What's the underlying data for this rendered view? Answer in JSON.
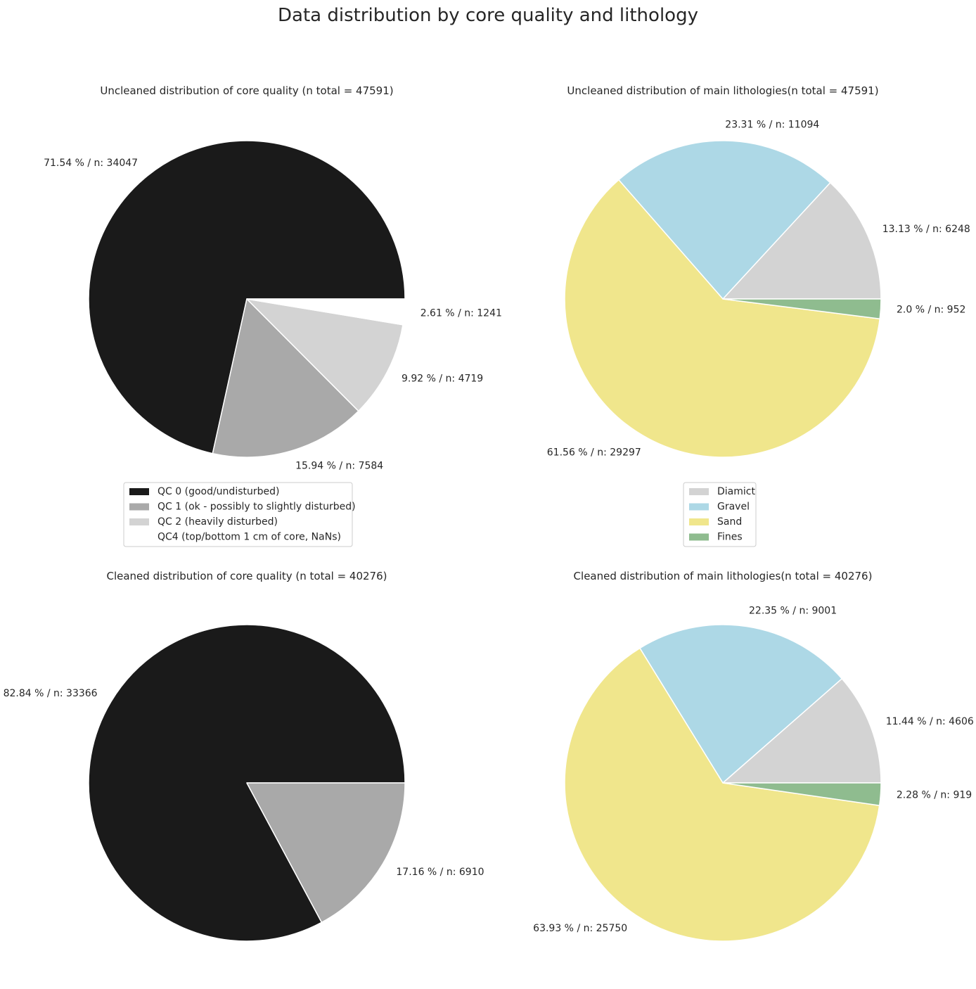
{
  "figure": {
    "suptitle": "Data distribution by core quality and lithology",
    "background": "#ffffff",
    "wedge_edge_color": "#ffffff"
  },
  "chart_data": [
    {
      "type": "pie",
      "title": "Uncleaned distribution of core quality (n total = 47591)",
      "start_angle_deg": 0,
      "direction": "counterclockwise",
      "slices": [
        {
          "name": "QC 0 (good/undisturbed)",
          "value": 71.54,
          "n": 34047,
          "label": "71.54 % / n: 34047",
          "color": "#1a1a1a"
        },
        {
          "name": "QC 1 (ok - possibly to slightly disturbed)",
          "value": 15.94,
          "n": 7584,
          "label": "15.94 % / n: 7584",
          "color": "#a9a9a9"
        },
        {
          "name": "QC 2 (heavily disturbed)",
          "value": 9.92,
          "n": 4719,
          "label": "9.92 % / n: 4719",
          "color": "#d3d3d3"
        },
        {
          "name": "QC4 (top/bottom 1 cm of core, NaNs)",
          "value": 2.61,
          "n": 1241,
          "label": "2.61 % / n: 1241",
          "color": "#ffffff"
        }
      ],
      "legend": {
        "placement": "below",
        "entries": [
          {
            "label": "QC 0 (good/undisturbed)",
            "color": "#1a1a1a"
          },
          {
            "label": "QC 1 (ok - possibly to slightly disturbed)",
            "color": "#a9a9a9"
          },
          {
            "label": "QC 2 (heavily disturbed)",
            "color": "#d3d3d3"
          },
          {
            "label": "QC4 (top/bottom 1 cm of core, NaNs)",
            "color": "#ffffff"
          }
        ]
      }
    },
    {
      "type": "pie",
      "title": "Uncleaned distribution of main lithologies(n total = 47591)",
      "start_angle_deg": 0,
      "direction": "counterclockwise",
      "slices": [
        {
          "name": "Diamict",
          "value": 13.13,
          "n": 6248,
          "label": "13.13 % / n: 6248",
          "color": "#d3d3d3"
        },
        {
          "name": "Gravel",
          "value": 23.31,
          "n": 11094,
          "label": "23.31 % / n: 11094",
          "color": "#add8e6"
        },
        {
          "name": "Sand",
          "value": 61.56,
          "n": 29297,
          "label": "61.56 % / n: 29297",
          "color": "#f0e68c"
        },
        {
          "name": "Fines",
          "value": 2.0,
          "n": 952,
          "label": "2.0 % / n: 952",
          "color": "#8fbc8f"
        }
      ],
      "legend": {
        "placement": "below",
        "entries": [
          {
            "label": "Diamict",
            "color": "#d3d3d3"
          },
          {
            "label": "Gravel",
            "color": "#add8e6"
          },
          {
            "label": "Sand",
            "color": "#f0e68c"
          },
          {
            "label": "Fines",
            "color": "#8fbc8f"
          }
        ]
      }
    },
    {
      "type": "pie",
      "title": "Cleaned distribution of core quality (n total = 40276)",
      "start_angle_deg": 0,
      "direction": "counterclockwise",
      "slices": [
        {
          "name": "QC 0",
          "value": 82.84,
          "n": 33366,
          "label": "82.84 % / n: 33366",
          "color": "#1a1a1a"
        },
        {
          "name": "QC 1",
          "value": 17.16,
          "n": 6910,
          "label": "17.16 % / n: 6910",
          "color": "#a9a9a9"
        }
      ]
    },
    {
      "type": "pie",
      "title": "Cleaned distribution of main lithologies(n total = 40276)",
      "start_angle_deg": 0,
      "direction": "counterclockwise",
      "slices": [
        {
          "name": "Diamict",
          "value": 11.44,
          "n": 4606,
          "label": "11.44 % / n: 4606",
          "color": "#d3d3d3"
        },
        {
          "name": "Gravel",
          "value": 22.35,
          "n": 9001,
          "label": "22.35 % / n: 9001",
          "color": "#add8e6"
        },
        {
          "name": "Sand",
          "value": 63.93,
          "n": 25750,
          "label": "63.93 % / n: 25750",
          "color": "#f0e68c"
        },
        {
          "name": "Fines",
          "value": 2.28,
          "n": 919,
          "label": "2.28 % / n: 919",
          "color": "#8fbc8f"
        }
      ]
    }
  ]
}
